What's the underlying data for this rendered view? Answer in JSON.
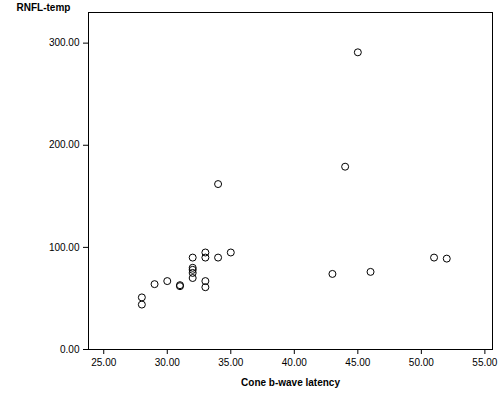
{
  "chart_data": {
    "type": "scatter",
    "x_label": "Cone b-wave latency",
    "y_label": "RNFL-temp",
    "x": [
      28,
      28,
      29,
      30,
      31,
      31,
      32,
      32,
      32,
      32,
      32,
      33,
      33,
      33,
      33,
      34,
      34,
      35,
      43,
      44,
      45,
      46,
      51,
      52
    ],
    "values": [
      51,
      44,
      64,
      67,
      63,
      62,
      90,
      80,
      78,
      75,
      70,
      95,
      90,
      67,
      61,
      162,
      90,
      95,
      74,
      179,
      291,
      76,
      90,
      89
    ],
    "color": "#000000",
    "marker": "hollow circle",
    "xlim": [
      23.8,
      55.6
    ],
    "ylim": [
      0,
      330
    ],
    "xticks": [
      {
        "value": 25,
        "label": "25.00"
      },
      {
        "value": 30,
        "label": "30.00"
      },
      {
        "value": 35,
        "label": "35.00"
      },
      {
        "value": 40,
        "label": "40.00"
      },
      {
        "value": 45,
        "label": "45.00"
      },
      {
        "value": 50,
        "label": "50.00"
      },
      {
        "value": 55,
        "label": "55.00"
      }
    ],
    "yticks": [
      {
        "value": 0,
        "label": "0.00"
      },
      {
        "value": 100,
        "label": "100.00"
      },
      {
        "value": 200,
        "label": "200.00"
      },
      {
        "value": 300,
        "label": "300.00"
      }
    ],
    "grid": false
  }
}
